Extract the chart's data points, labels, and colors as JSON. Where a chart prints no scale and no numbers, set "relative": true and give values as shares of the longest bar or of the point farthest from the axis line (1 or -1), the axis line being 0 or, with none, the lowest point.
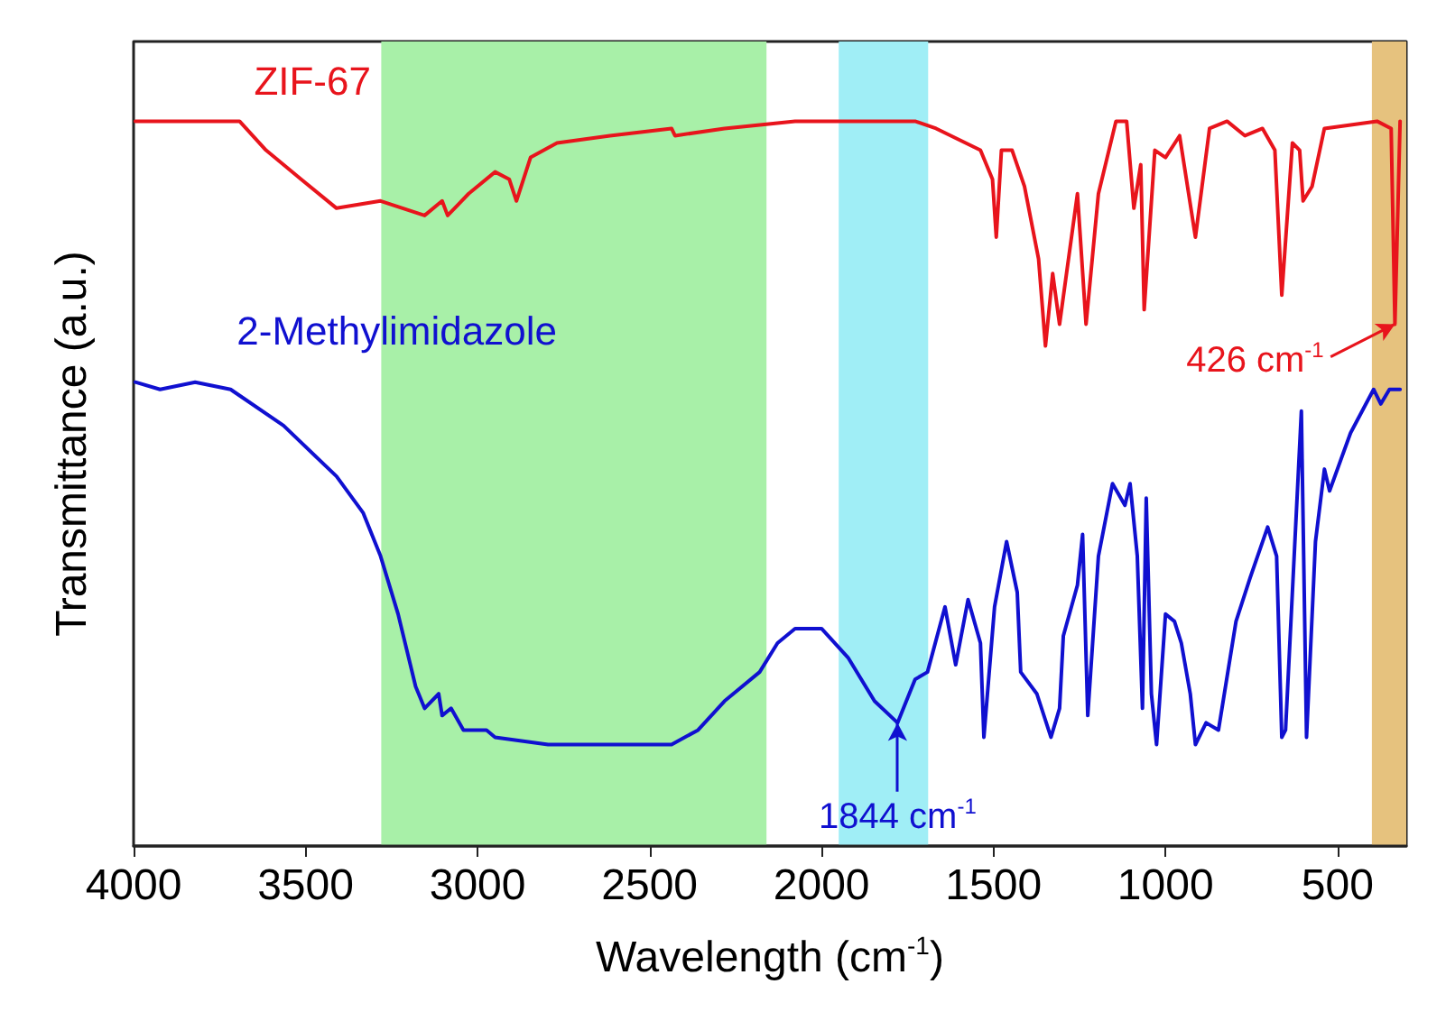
{
  "chart_data": {
    "type": "line",
    "xlabel": "Wavelength (cm$^{-1}$)",
    "ylabel": "Transmittance (a.u.)",
    "relative": true,
    "legend": false,
    "grid": false,
    "marker": "none",
    "line_style": "solid",
    "xlim": [
      4000,
      300
    ],
    "xticks": [
      4000,
      3500,
      3000,
      2500,
      2000,
      1500,
      1000,
      500
    ],
    "series": [
      {
        "name": "ZIF-67",
        "color": "#e8141c",
        "x": [
          3995,
          3692,
          3615,
          3513,
          3410,
          3282,
          3154,
          3103,
          3087,
          3026,
          2949,
          2908,
          2887,
          2846,
          2769,
          2615,
          2436,
          2426,
          2282,
          2077,
          1769,
          1728,
          1667,
          1538,
          1503,
          1492,
          1477,
          1446,
          1410,
          1369,
          1349,
          1328,
          1308,
          1256,
          1231,
          1195,
          1144,
          1113,
          1092,
          1072,
          1062,
          1031,
          1000,
          959,
          913,
          872,
          821,
          769,
          718,
          682,
          662,
          631,
          610,
          600,
          574,
          538,
          385,
          344,
          333,
          318
        ],
        "values": [
          1.0,
          1.0,
          0.96,
          0.92,
          0.88,
          0.89,
          0.87,
          0.89,
          0.87,
          0.9,
          0.93,
          0.92,
          0.89,
          0.95,
          0.97,
          0.98,
          0.99,
          0.98,
          0.99,
          1.0,
          1.0,
          1.0,
          0.99,
          0.96,
          0.92,
          0.84,
          0.96,
          0.96,
          0.91,
          0.81,
          0.69,
          0.79,
          0.72,
          0.9,
          0.72,
          0.9,
          1.0,
          1.0,
          0.88,
          0.94,
          0.74,
          0.96,
          0.95,
          0.98,
          0.84,
          0.99,
          1.0,
          0.98,
          0.99,
          0.96,
          0.76,
          0.97,
          0.96,
          0.89,
          0.91,
          0.99,
          1.0,
          0.99,
          0.72,
          1.0
        ]
      },
      {
        "name": "2-Methylimidazole",
        "color": "#1010d0",
        "x": [
          3995,
          3923,
          3821,
          3718,
          3564,
          3410,
          3333,
          3282,
          3231,
          3180,
          3154,
          3113,
          3103,
          3077,
          3041,
          2974,
          2949,
          2795,
          2615,
          2436,
          2359,
          2282,
          2180,
          2128,
          2077,
          2000,
          1923,
          1846,
          1779,
          1728,
          1692,
          1641,
          1610,
          1574,
          1538,
          1528,
          1497,
          1462,
          1431,
          1421,
          1374,
          1333,
          1308,
          1297,
          1256,
          1241,
          1226,
          1195,
          1154,
          1118,
          1103,
          1082,
          1067,
          1056,
          1041,
          1026,
          1000,
          974,
          954,
          928,
          913,
          882,
          846,
          795,
          754,
          703,
          677,
          662,
          651,
          605,
          590,
          564,
          538,
          523,
          462,
          395,
          374,
          349,
          318
        ],
        "values": [
          0.64,
          0.63,
          0.64,
          0.63,
          0.58,
          0.51,
          0.46,
          0.4,
          0.32,
          0.22,
          0.19,
          0.21,
          0.18,
          0.19,
          0.16,
          0.16,
          0.15,
          0.14,
          0.14,
          0.14,
          0.16,
          0.2,
          0.24,
          0.28,
          0.3,
          0.3,
          0.26,
          0.2,
          0.17,
          0.23,
          0.24,
          0.33,
          0.25,
          0.34,
          0.28,
          0.15,
          0.33,
          0.42,
          0.35,
          0.24,
          0.21,
          0.15,
          0.19,
          0.29,
          0.36,
          0.43,
          0.18,
          0.4,
          0.5,
          0.47,
          0.5,
          0.4,
          0.19,
          0.48,
          0.21,
          0.14,
          0.32,
          0.31,
          0.28,
          0.21,
          0.14,
          0.17,
          0.16,
          0.31,
          0.37,
          0.44,
          0.4,
          0.15,
          0.16,
          0.6,
          0.15,
          0.42,
          0.52,
          0.49,
          0.57,
          0.63,
          0.61,
          0.63,
          0.63
        ]
      }
    ],
    "bands": [
      {
        "axis": "x",
        "from": 3280,
        "to": 2160,
        "color": "#a8f0a8"
      },
      {
        "axis": "x",
        "from": 1950,
        "to": 1690,
        "color": "#a0eef6"
      },
      {
        "axis": "x",
        "from": 400,
        "to": 300,
        "color": "#e6c27e"
      }
    ],
    "annotations": [
      {
        "text": "426 cm$^{-1}$",
        "x": 333,
        "y": 0.72
      },
      {
        "text": "1844 cm$^{-1}$",
        "x": 1779,
        "y": 0.17
      }
    ]
  }
}
